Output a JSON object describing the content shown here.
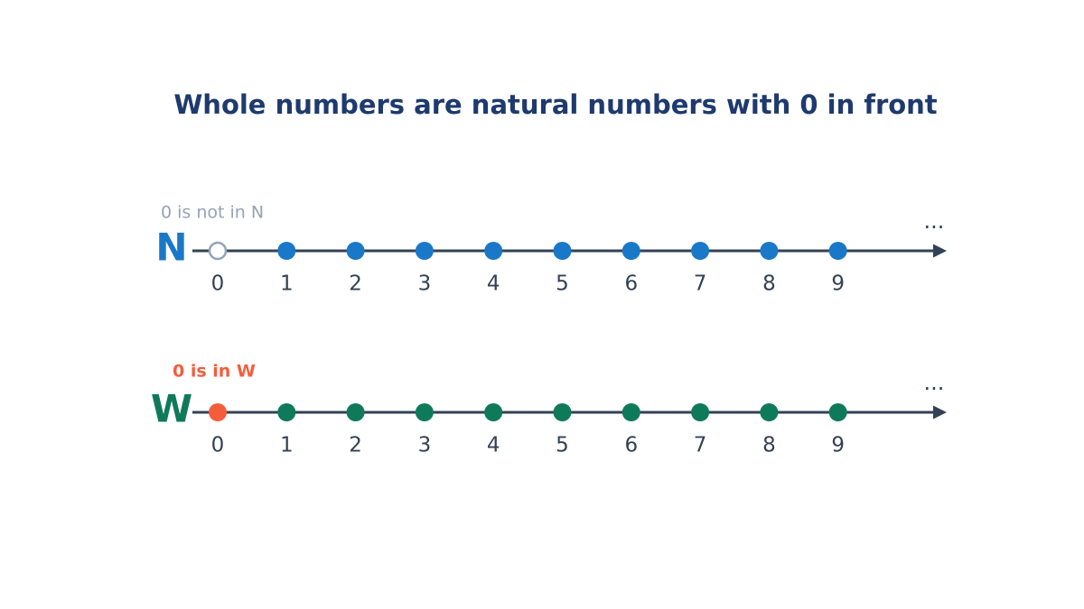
{
  "title": "Whole numbers are natural numbers with 0 in front",
  "lines": [
    {
      "symbol": "N",
      "note": "0 is not in N",
      "ticks": [
        0,
        1,
        2,
        3,
        4,
        5,
        6,
        7,
        8,
        9
      ],
      "continues": "..."
    },
    {
      "symbol": "W",
      "note": "0 is in W",
      "ticks": [
        0,
        1,
        2,
        3,
        4,
        5,
        6,
        7,
        8,
        9
      ],
      "continues": "..."
    }
  ]
}
